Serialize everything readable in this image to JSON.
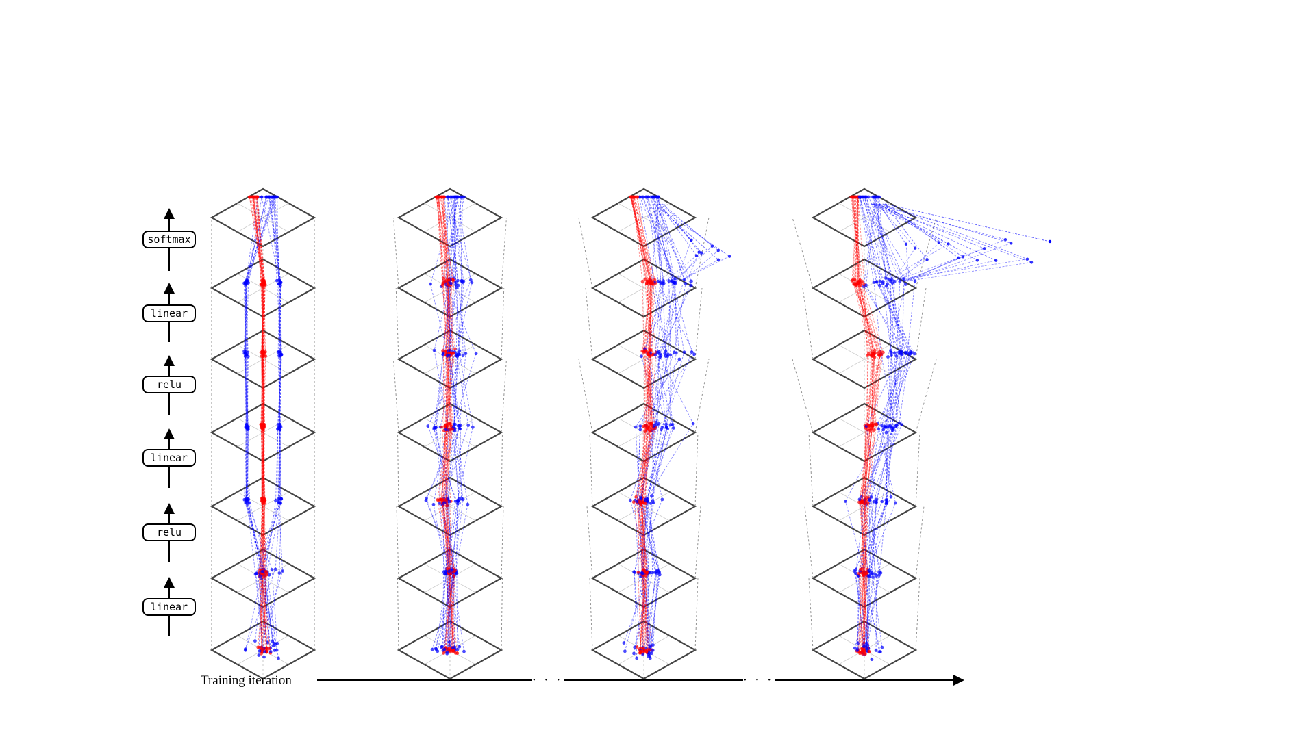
{
  "layer_ops": [
    "linear",
    "relu",
    "linear",
    "relu",
    "linear",
    "softmax"
  ],
  "x_axis": {
    "label": "Training iteration",
    "ellipsis": "· · ·"
  },
  "colors": {
    "class_a": "#ff0000",
    "class_b": "#0000ff",
    "plane_edge": "#444444",
    "hull": "#777777"
  },
  "stage_count": 4,
  "layers_per_stage": 7
}
